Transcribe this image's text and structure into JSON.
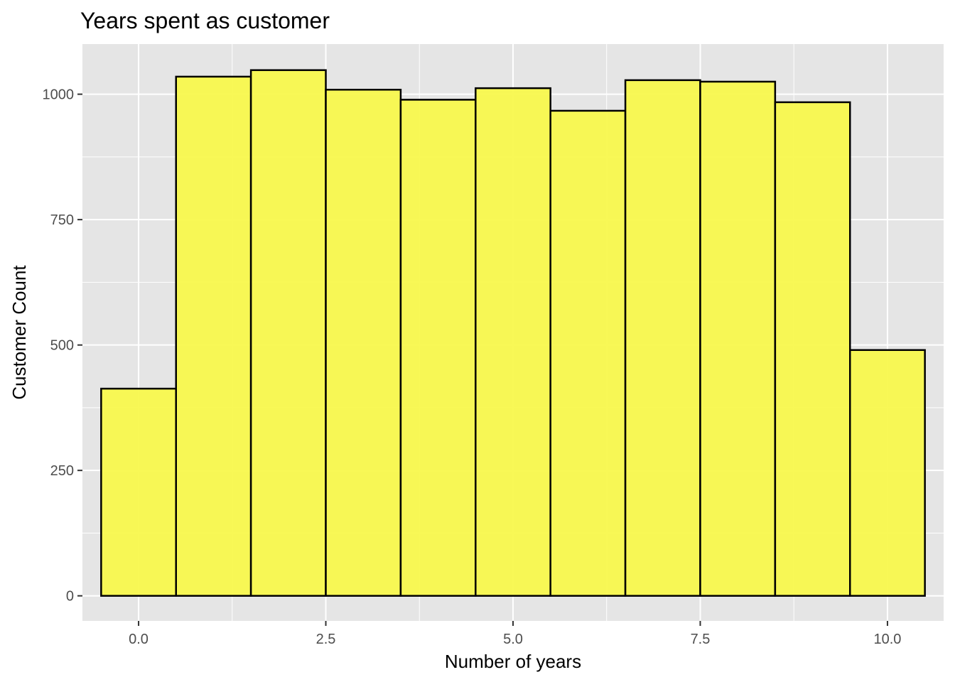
{
  "chart_data": {
    "type": "bar",
    "title": "Years spent as customer",
    "xlabel": "Number of years",
    "ylabel": "Customer Count",
    "bin_width": 1,
    "x": [
      0,
      1,
      2,
      3,
      4,
      5,
      6,
      7,
      8,
      9,
      10
    ],
    "values": [
      413,
      1035,
      1048,
      1009,
      989,
      1012,
      967,
      1028,
      1025,
      984,
      490
    ],
    "xlim": [
      -0.75,
      10.75
    ],
    "ylim": [
      -50,
      1100
    ],
    "x_ticks": [
      0,
      2.5,
      5,
      7.5,
      10
    ],
    "x_tick_labels": [
      "0.0",
      "2.5",
      "5.0",
      "7.5",
      "10.0"
    ],
    "y_ticks": [
      0,
      250,
      500,
      750,
      1000
    ],
    "y_tick_labels": [
      "0",
      "250",
      "500",
      "750",
      "1000"
    ],
    "grid": true,
    "legend": "none",
    "colors": {
      "bar_fill": "#f8f84f",
      "bar_stroke": "#000000",
      "panel": "#e5e5e5",
      "grid": "#ffffff"
    }
  }
}
